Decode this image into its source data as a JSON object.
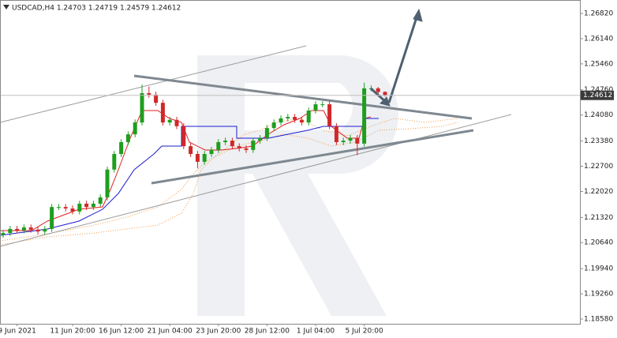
{
  "chart_data": {
    "type": "candlestick",
    "title": "USDCAD,H4  1.24703  1.24719  1.24579  1.24612",
    "categories": [
      null,
      null,
      "9 Jun 2021",
      null,
      null,
      null,
      null,
      null,
      null,
      null,
      "11 Jun 20:00",
      null,
      null,
      null,
      null,
      null,
      null,
      "16 Jun 12:00",
      null,
      null,
      null,
      null,
      null,
      null,
      "21 Jun 04:00",
      null,
      null,
      null,
      null,
      null,
      null,
      "23 Jun 20:00",
      null,
      null,
      null,
      null,
      null,
      null,
      "28 Jun 12:00",
      null,
      null,
      null,
      null,
      null,
      null,
      "1 Jul 04:00",
      null,
      null,
      null,
      null,
      null,
      null,
      "5 Jul 20:00",
      null,
      null,
      null
    ],
    "open": [
      1.2085,
      1.209,
      1.2101,
      1.2097,
      1.2105,
      1.2099,
      1.2094,
      1.2101,
      1.216,
      1.216,
      1.2156,
      1.2148,
      1.2169,
      1.216,
      1.2169,
      1.2186,
      1.2261,
      1.2303,
      1.2335,
      1.2356,
      1.2388,
      1.2467,
      1.2463,
      1.2441,
      1.2388,
      1.2395,
      1.2378,
      1.2324,
      1.2303,
      1.2282,
      1.2303,
      1.2314,
      1.2335,
      1.2339,
      1.2324,
      1.2318,
      1.2314,
      1.2339,
      1.2346,
      1.2373,
      1.2388,
      1.2399,
      1.2403,
      1.2395,
      1.2388,
      1.242,
      1.2437,
      1.2437,
      1.2378,
      1.2335,
      1.2339,
      1.2346,
      1.2331,
      1.248,
      1.248,
      1.24703
    ],
    "high": [
      1.2098,
      1.2109,
      1.2109,
      1.2113,
      1.2113,
      1.2107,
      1.2109,
      1.2168,
      1.2168,
      1.2168,
      1.2164,
      1.2177,
      1.2177,
      1.2177,
      1.2194,
      1.2269,
      1.2311,
      1.2343,
      1.2364,
      1.2396,
      1.249,
      1.2485,
      1.2471,
      1.2449,
      1.2403,
      1.2403,
      1.2386,
      1.2332,
      1.2311,
      1.2311,
      1.2322,
      1.2343,
      1.2347,
      1.2347,
      1.2332,
      1.2326,
      1.2347,
      1.2354,
      1.2381,
      1.2396,
      1.2407,
      1.2411,
      1.2411,
      1.2403,
      1.2428,
      1.2445,
      1.2445,
      1.2445,
      1.2386,
      1.2347,
      1.2354,
      1.2354,
      1.2495,
      1.2488,
      1.2484,
      1.24719
    ],
    "low": [
      1.2077,
      1.2082,
      1.2089,
      1.2089,
      1.2091,
      1.2086,
      1.2086,
      1.2093,
      1.2152,
      1.2148,
      1.214,
      1.214,
      1.2152,
      1.2152,
      1.2161,
      1.2178,
      1.2253,
      1.2295,
      1.2327,
      1.2348,
      1.238,
      1.2455,
      1.2433,
      1.238,
      1.238,
      1.237,
      1.2316,
      1.2295,
      1.2265,
      1.2274,
      1.2295,
      1.2306,
      1.2327,
      1.2316,
      1.231,
      1.2306,
      1.2306,
      1.2331,
      1.2338,
      1.2365,
      1.238,
      1.2391,
      1.2387,
      1.238,
      1.238,
      1.2412,
      1.2429,
      1.237,
      1.2327,
      1.2327,
      1.2331,
      1.23,
      1.2323,
      1.2472,
      1.2462,
      1.24579
    ],
    "close": [
      1.209,
      1.2101,
      1.2097,
      1.2105,
      1.2099,
      1.2094,
      1.2101,
      1.216,
      1.216,
      1.2156,
      1.2148,
      1.2169,
      1.216,
      1.2169,
      1.2186,
      1.2261,
      1.2303,
      1.2335,
      1.2356,
      1.2388,
      1.2467,
      1.2463,
      1.2441,
      1.2388,
      1.2395,
      1.2378,
      1.2324,
      1.2303,
      1.2282,
      1.2303,
      1.2314,
      1.2335,
      1.2339,
      1.2324,
      1.2318,
      1.2314,
      1.2339,
      1.2346,
      1.2373,
      1.2388,
      1.2399,
      1.2403,
      1.2395,
      1.2388,
      1.242,
      1.2437,
      1.2437,
      1.2378,
      1.2335,
      1.2339,
      1.2346,
      1.2331,
      1.248,
      1.248,
      1.247,
      1.24612
    ],
    "up_color": "#1e9e1e",
    "down_color": "#d0282a",
    "ylim": [
      1.18452,
      1.27182
    ],
    "yticks": [
      {
        "value": 1.2682,
        "label": "1.26820"
      },
      {
        "value": 1.2614,
        "label": "1.26140"
      },
      {
        "value": 1.2546,
        "label": "1.25460"
      },
      {
        "value": 1.2476,
        "label": "1.24760"
      },
      {
        "value": 1.2408,
        "label": "1.24080"
      },
      {
        "value": 1.2338,
        "label": "1.23380"
      },
      {
        "value": 1.227,
        "label": "1.22700"
      },
      {
        "value": 1.2202,
        "label": "1.22020"
      },
      {
        "value": 1.2132,
        "label": "1.21320"
      },
      {
        "value": 1.2064,
        "label": "1.20640"
      },
      {
        "value": 1.1994,
        "label": "1.19940"
      },
      {
        "value": 1.1926,
        "label": "1.19260"
      },
      {
        "value": 1.1858,
        "label": "1.18580"
      }
    ],
    "last_price": {
      "value": 1.24612,
      "label": "1.24612"
    }
  }
}
